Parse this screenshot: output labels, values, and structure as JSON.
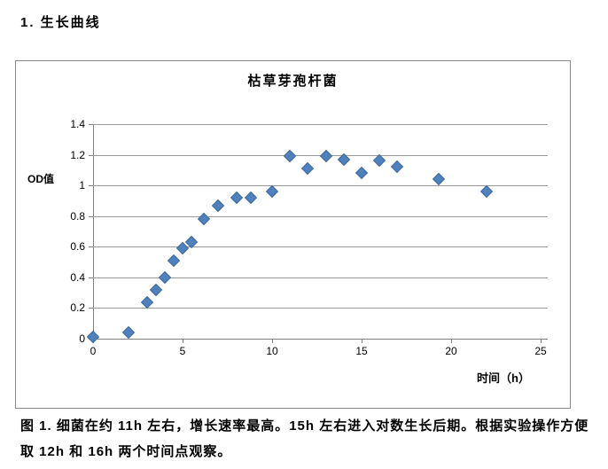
{
  "page": {
    "heading": "1. 生长曲线",
    "caption_lines": [
      "图 1. 细菌在约 11h 左右，增长速率最高。15h 左右进入对数生长后期。根据实验操作方便",
      "取 12h 和 16h 两个时间点观察。"
    ]
  },
  "chart_data": {
    "type": "scatter",
    "title": "枯草芽孢杆菌",
    "xlabel": "时间（h）",
    "ylabel": "OD值",
    "xlim": [
      0,
      25
    ],
    "ylim": [
      0,
      1.4
    ],
    "x_ticks": [
      0,
      5,
      10,
      15,
      20,
      25
    ],
    "y_ticks": [
      0,
      0.2,
      0.4,
      0.6,
      0.8,
      1,
      1.2,
      1.4
    ],
    "grid": "horizontal-only",
    "legend": "none",
    "marker": "diamond",
    "marker_color": "#4F81BD",
    "series": [
      {
        "name": "OD值",
        "points": [
          [
            0,
            0.01
          ],
          [
            2,
            0.04
          ],
          [
            3,
            0.24
          ],
          [
            3.5,
            0.32
          ],
          [
            4,
            0.4
          ],
          [
            4.5,
            0.51
          ],
          [
            5,
            0.59
          ],
          [
            5.5,
            0.63
          ],
          [
            6.2,
            0.78
          ],
          [
            7,
            0.87
          ],
          [
            8,
            0.92
          ],
          [
            8.8,
            0.92
          ],
          [
            10,
            0.96
          ],
          [
            11,
            1.19
          ],
          [
            12,
            1.11
          ],
          [
            13,
            1.19
          ],
          [
            14,
            1.17
          ],
          [
            15,
            1.08
          ],
          [
            16,
            1.16
          ],
          [
            17,
            1.12
          ],
          [
            19.3,
            1.04
          ],
          [
            22,
            0.96
          ]
        ]
      }
    ]
  }
}
